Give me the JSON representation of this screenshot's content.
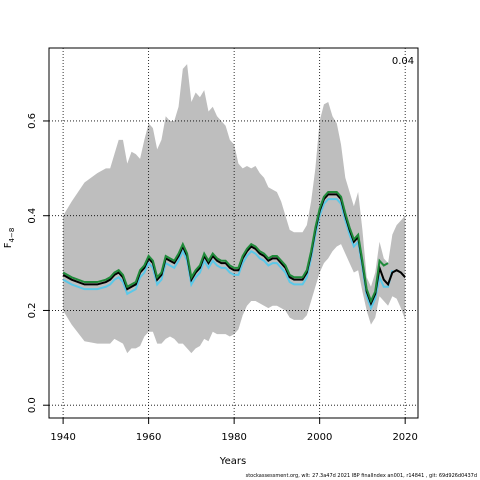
{
  "chart_data": {
    "type": "line",
    "corner_label": "0.04",
    "xlabel": "Years",
    "ylabel": "F",
    "ylabel_subscript": "4−8",
    "footer": "stockassessment.org, wlt: 27.3a47d 2021 IBP finalIndex an001, r14841 , git: 69d926d0437d",
    "xlim": [
      1936.7,
      2023
    ],
    "ylim": [
      -0.027,
      0.754
    ],
    "xticks": [
      1940,
      1960,
      1980,
      2000,
      2020
    ],
    "yticks": [
      {
        "value": 0,
        "label": "0.0"
      },
      0.2,
      0.4,
      0.6
    ],
    "grid": true,
    "x": [
      1940,
      1942,
      1945,
      1948,
      1950,
      1951,
      1952,
      1953,
      1954,
      1955,
      1956,
      1957,
      1958,
      1959,
      1960,
      1961,
      1962,
      1963,
      1964,
      1965,
      1966,
      1967,
      1968,
      1969,
      1970,
      1971,
      1972,
      1973,
      1974,
      1975,
      1976,
      1977,
      1978,
      1979,
      1980,
      1981,
      1982,
      1983,
      1984,
      1985,
      1986,
      1987,
      1988,
      1989,
      1990,
      1991,
      1992,
      1993,
      1994,
      1995,
      1996,
      1997,
      1998,
      1999,
      2000,
      2001,
      2002,
      2003,
      2004,
      2005,
      2006,
      2007,
      2008,
      2009,
      2010,
      2011,
      2012,
      2013,
      2014,
      2015,
      2016,
      2017,
      2018,
      2019,
      2020
    ],
    "band": {
      "color": "#bebebe",
      "upper": [
        0.4,
        0.43,
        0.47,
        0.49,
        0.5,
        0.5,
        0.53,
        0.56,
        0.56,
        0.51,
        0.535,
        0.53,
        0.52,
        0.56,
        0.595,
        0.585,
        0.54,
        0.56,
        0.61,
        0.6,
        0.6,
        0.63,
        0.71,
        0.72,
        0.64,
        0.66,
        0.65,
        0.665,
        0.62,
        0.63,
        0.61,
        0.6,
        0.59,
        0.56,
        0.55,
        0.51,
        0.5,
        0.505,
        0.5,
        0.505,
        0.49,
        0.48,
        0.46,
        0.455,
        0.45,
        0.43,
        0.4,
        0.37,
        0.365,
        0.365,
        0.365,
        0.38,
        0.43,
        0.5,
        0.6,
        0.635,
        0.64,
        0.61,
        0.595,
        0.55,
        0.48,
        0.45,
        0.42,
        0.45,
        0.37,
        0.27,
        0.25,
        0.28,
        0.345,
        0.31,
        0.3,
        0.36,
        0.38,
        0.39,
        0.4
      ],
      "lower": [
        0.2,
        0.17,
        0.135,
        0.13,
        0.13,
        0.13,
        0.14,
        0.135,
        0.13,
        0.11,
        0.12,
        0.12,
        0.125,
        0.145,
        0.155,
        0.155,
        0.13,
        0.13,
        0.14,
        0.145,
        0.14,
        0.13,
        0.13,
        0.12,
        0.11,
        0.12,
        0.125,
        0.14,
        0.135,
        0.155,
        0.15,
        0.15,
        0.15,
        0.145,
        0.15,
        0.16,
        0.19,
        0.21,
        0.22,
        0.22,
        0.215,
        0.21,
        0.205,
        0.21,
        0.21,
        0.205,
        0.2,
        0.185,
        0.18,
        0.18,
        0.18,
        0.19,
        0.22,
        0.25,
        0.28,
        0.3,
        0.31,
        0.325,
        0.335,
        0.34,
        0.32,
        0.3,
        0.28,
        0.285,
        0.24,
        0.2,
        0.17,
        0.185,
        0.23,
        0.22,
        0.21,
        0.23,
        0.225,
        0.205,
        0.18
      ]
    },
    "series": [
      {
        "color": "#5bc8e8",
        "values": [
          0.265,
          0.255,
          0.245,
          0.245,
          0.25,
          0.255,
          0.265,
          0.27,
          0.26,
          0.235,
          0.24,
          0.245,
          0.27,
          0.28,
          0.3,
          0.29,
          0.255,
          0.265,
          0.3,
          0.295,
          0.29,
          0.305,
          0.325,
          0.305,
          0.255,
          0.27,
          0.28,
          0.305,
          0.29,
          0.305,
          0.295,
          0.29,
          0.29,
          0.28,
          0.275,
          0.275,
          0.3,
          0.315,
          0.325,
          0.32,
          0.31,
          0.305,
          0.295,
          0.3,
          0.3,
          0.29,
          0.28,
          0.26,
          0.255,
          0.255,
          0.255,
          0.27,
          0.31,
          0.36,
          0.4,
          0.425,
          0.435,
          0.435,
          0.435,
          0.425,
          0.39,
          0.36,
          0.335,
          0.345,
          0.29,
          0.23,
          0.205,
          0.225,
          0.27,
          0.25,
          0.25,
          0.285,
          null,
          null,
          null
        ]
      },
      {
        "color": "#000000",
        "values": [
          0.275,
          0.265,
          0.255,
          0.255,
          0.26,
          0.265,
          0.275,
          0.28,
          0.27,
          0.245,
          0.25,
          0.255,
          0.28,
          0.29,
          0.31,
          0.3,
          0.265,
          0.275,
          0.31,
          0.305,
          0.3,
          0.315,
          0.335,
          0.315,
          0.265,
          0.28,
          0.29,
          0.315,
          0.3,
          0.315,
          0.305,
          0.3,
          0.3,
          0.29,
          0.285,
          0.285,
          0.31,
          0.325,
          0.335,
          0.33,
          0.32,
          0.315,
          0.305,
          0.31,
          0.31,
          0.3,
          0.29,
          0.27,
          0.265,
          0.265,
          0.265,
          0.28,
          0.32,
          0.37,
          0.41,
          0.435,
          0.445,
          0.445,
          0.445,
          0.435,
          0.4,
          0.37,
          0.345,
          0.355,
          0.3,
          0.24,
          0.215,
          0.235,
          0.29,
          0.265,
          0.255,
          0.28,
          0.285,
          0.28,
          0.27
        ]
      },
      {
        "color": "#1f8a3a",
        "values": [
          0.28,
          0.27,
          0.26,
          0.26,
          0.265,
          0.27,
          0.28,
          0.285,
          0.275,
          0.25,
          0.255,
          0.26,
          0.285,
          0.295,
          0.315,
          0.305,
          0.27,
          0.28,
          0.315,
          0.31,
          0.305,
          0.32,
          0.34,
          0.32,
          0.27,
          0.285,
          0.295,
          0.32,
          0.305,
          0.32,
          0.31,
          0.305,
          0.305,
          0.295,
          0.29,
          0.29,
          0.315,
          0.33,
          0.34,
          0.335,
          0.325,
          0.32,
          0.31,
          0.315,
          0.315,
          0.305,
          0.295,
          0.275,
          0.27,
          0.27,
          0.27,
          0.285,
          0.325,
          0.375,
          0.415,
          0.44,
          0.45,
          0.45,
          0.45,
          0.44,
          0.405,
          0.375,
          0.35,
          0.36,
          0.305,
          0.245,
          0.22,
          0.24,
          0.305,
          0.295,
          0.3,
          null,
          null,
          null,
          null
        ]
      }
    ]
  }
}
